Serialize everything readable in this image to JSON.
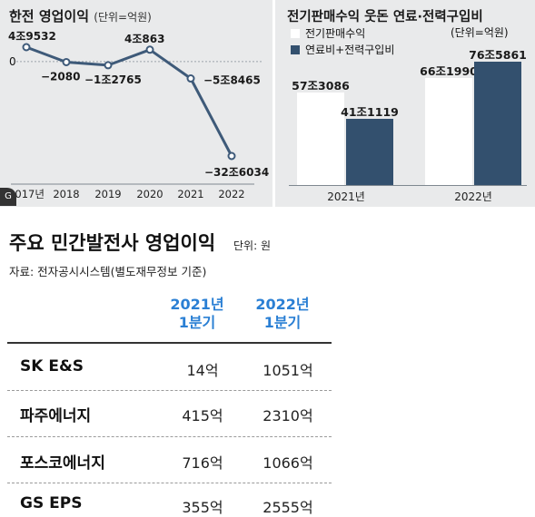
{
  "chart_data": [
    {
      "type": "line",
      "title": "한전 영업이익",
      "unit_note": "(단위=억원)",
      "x": [
        "2017년",
        "2018",
        "2019",
        "2020",
        "2021",
        "2022"
      ],
      "y": [
        49532,
        -2080,
        -12765,
        40863,
        -58465,
        -326034
      ],
      "value_labels": [
        "4조9532",
        "−2080",
        "−1조2765",
        "4조863",
        "−5조8465",
        "−32조6034"
      ],
      "zero_label": "0",
      "ylim": [
        -326034,
        49532
      ],
      "color": "#3e5a79"
    },
    {
      "type": "bar",
      "title": "전기판매수익 웃돈 연료·전력구입비",
      "unit_note": "(단위=억원)",
      "categories": [
        "2021년",
        "2022년"
      ],
      "series": [
        {
          "name": "전기판매수익",
          "values": [
            573086,
            661990
          ],
          "labels": [
            "57조3086",
            "66조1990"
          ],
          "color": "#ffffff"
        },
        {
          "name": "연료비+전력구입비",
          "values": [
            411119,
            765861
          ],
          "labels": [
            "41조1119",
            "76조5861"
          ],
          "color": "#33506e"
        }
      ],
      "ylim": [
        0,
        765861
      ]
    },
    {
      "type": "table",
      "title": "주요 민간발전사 영업이익",
      "unit_note": "단위: 원",
      "source": "자료: 전자공시시스템(별도재무정보 기준)",
      "columns": [
        {
          "line1": "2021년",
          "line2": "1분기"
        },
        {
          "line1": "2022년",
          "line2": "1분기"
        }
      ],
      "rows": [
        {
          "name": "SK E&S",
          "v2021": "14억",
          "v2022": "1051억"
        },
        {
          "name": "파주에너지",
          "v2021": "415억",
          "v2022": "2310억"
        },
        {
          "name": "포스코에너지",
          "v2021": "716억",
          "v2022": "1066억"
        },
        {
          "name": "GS EPS",
          "v2021": "355억",
          "v2022": "2555억"
        }
      ]
    }
  ]
}
